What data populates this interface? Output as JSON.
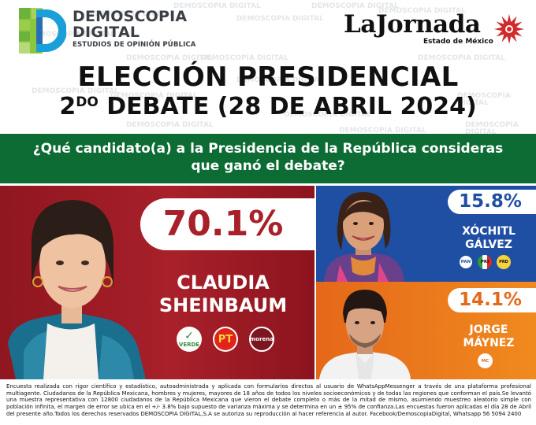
{
  "header": {
    "brand_name_line1": "DEMOSCOPIA",
    "brand_name_line2": "DIGITAL",
    "brand_subtitle": "ESTUDIOS DE OPINIÓN PÚBLICA",
    "partner_name_a": "La",
    "partner_name_b": "Jornada",
    "partner_subtitle": "Estado de México",
    "watermark_text": "DEMOSCOPIA DIGITAL"
  },
  "title": {
    "line1": "ELECCIÓN PRESIDENCIAL",
    "line2_num": "2",
    "line2_sup": "DO",
    "line2_rest": " DEBATE (28 DE ABRIL 2024)"
  },
  "question": {
    "line1": "¿Qué candidato(a) a la Presidencia de la República consideras",
    "line2": "que ganó el debate?"
  },
  "chart_data": {
    "type": "bar",
    "title": "¿Qué candidato(a) a la Presidencia de la República consideras que ganó el debate?",
    "categories": [
      "CLAUDIA SHEINBAUM",
      "XÓCHITL GÁLVEZ",
      "JORGE MÁYNEZ"
    ],
    "values": [
      70.1,
      15.8,
      14.1
    ],
    "labels": [
      "70.1%",
      "15.8%",
      "14.1%"
    ],
    "unit": "%",
    "colors": [
      "#a8202a",
      "#1f4fa3",
      "#e5681a"
    ]
  },
  "candidates": [
    {
      "name_line1": "CLAUDIA",
      "name_line2": "SHEINBAUM",
      "percent": "70.1%",
      "parties": [
        "VERDE",
        "PT",
        "morena"
      ],
      "color": "#a8202a"
    },
    {
      "name_line1": "XÓCHITL",
      "name_line2": "GÁLVEZ",
      "percent": "15.8%",
      "parties": [
        "PAN",
        "PRI",
        "PRD"
      ],
      "color": "#1f4fa3"
    },
    {
      "name_line1": "JORGE",
      "name_line2": "MÁYNEZ",
      "percent": "14.1%",
      "parties": [
        "MC"
      ],
      "color": "#e5681a"
    }
  ],
  "footer": {
    "text": "Encuesta realizada con rigor científico y estadístico, autoadministrada y aplicada con formularios directos al usuario de WhatsAppMessenger a través de una plataforma profesional multiagente. Ciudadanos de la República Mexicana, hombres y mujeres, mayores de 18 años de todos los niveles socioeconómicos y de todas las regiones que conforman el país.Se levantó una muestra representativa con 12800 ciudadanos de la República Mexicana que vieron el debate completo o más de la mitad de mismo, asumiendo muestreo aleatorio simple con población infinita, el margen de error se ubica en el +/- 3.8% bajo supuesto de varianza máxima y se determina en un ± 95% de confianza.Las encuestas fueron aplicadas el día 28 de Abril del presente año.Todos los derechos reservados DEMOSCOPIA DIGITAL,S.A se autoriza su reproducción al hacer referencia al autor. Facebook/DemoscopiaDigital, Whatsapp 56 5094 2400"
  }
}
